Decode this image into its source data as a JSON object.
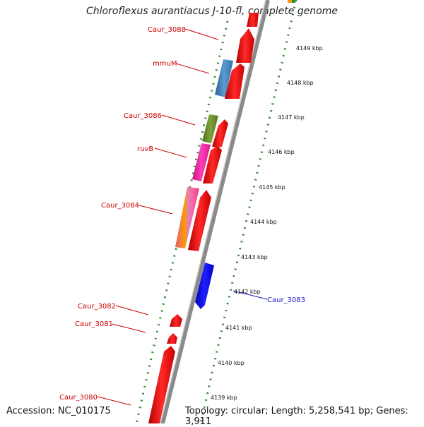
{
  "title": "Chloroflexus aurantiacus J-10-fl, complete genome",
  "footer": {
    "accession": "Accession: NC_010175",
    "stats": "Topology: circular; Length: 5,258,541 bp; Genes: 3,911"
  },
  "colors": {
    "label_red": "#cc0000",
    "label_blue": "#1a1ac8",
    "tick_green": "#2e8b2e",
    "backbone": "#888888"
  },
  "kbp_ticks": [
    "4149 kbp",
    "4148 kbp",
    "4147 kbp",
    "4146 kbp",
    "4145 kbp",
    "4144 kbp",
    "4143 kbp",
    "4142 kbp",
    "4141 kbp",
    "4140 kbp",
    "4139 kbp"
  ],
  "gene_labels": [
    {
      "text": "Caur_3088",
      "color": "red"
    },
    {
      "text": "mmuM",
      "color": "red"
    },
    {
      "text": "Caur_3086",
      "color": "red"
    },
    {
      "text": "ruvB",
      "color": "red"
    },
    {
      "text": "Caur_3084",
      "color": "red"
    },
    {
      "text": "Caur_3083",
      "color": "blue"
    },
    {
      "text": "Caur_3082",
      "color": "red"
    },
    {
      "text": "Caur_3081",
      "color": "red"
    },
    {
      "text": "Caur_3080",
      "color": "red"
    }
  ]
}
